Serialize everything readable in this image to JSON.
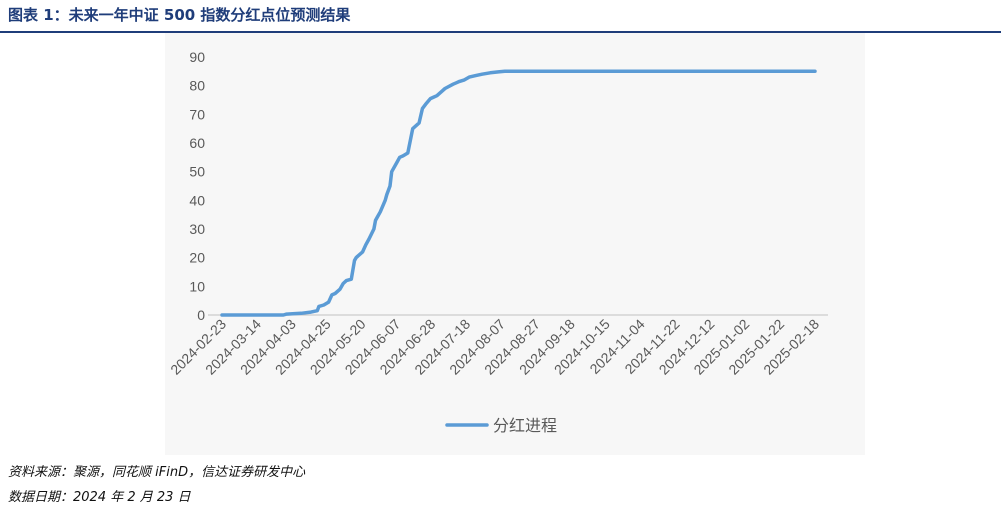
{
  "figure": {
    "title": "图表 1：未来一年中证 500 指数分红点位预测结果",
    "source": "资料来源：聚源，同花顺 iFinD，信达证券研发中心",
    "date": "数据日期：2024 年 2 月 23 日"
  },
  "colors": {
    "line": "#5b9bd5",
    "axis": "#c0c0c0",
    "text": "#595959",
    "title": "#1f3d7a"
  },
  "chart_data": {
    "type": "line",
    "title": "",
    "xlabel": "",
    "ylabel": "",
    "ylim": [
      0,
      90
    ],
    "yticks": [
      0,
      10,
      20,
      30,
      40,
      50,
      60,
      70,
      80,
      90
    ],
    "xlim": [
      "2024-02-23",
      "2025-02-24"
    ],
    "xtick_labels": [
      "2024-02-23",
      "2024-03-14",
      "2024-04-03",
      "2024-04-25",
      "2024-05-20",
      "2024-06-07",
      "2024-06-28",
      "2024-07-18",
      "2024-08-07",
      "2024-08-27",
      "2024-09-18",
      "2024-10-15",
      "2024-11-04",
      "2024-11-22",
      "2024-12-12",
      "2025-01-02",
      "2025-01-22",
      "2025-02-18"
    ],
    "grid": false,
    "legend": "bottom",
    "series": [
      {
        "name": "分红进程",
        "x": [
          "2024-02-23",
          "2024-04-01",
          "2024-04-03",
          "2024-04-08",
          "2024-04-12",
          "2024-04-15",
          "2024-04-18",
          "2024-04-22",
          "2024-04-23",
          "2024-04-26",
          "2024-04-29",
          "2024-05-01",
          "2024-05-03",
          "2024-05-06",
          "2024-05-08",
          "2024-05-10",
          "2024-05-13",
          "2024-05-15",
          "2024-05-16",
          "2024-05-17",
          "2024-05-20",
          "2024-05-22",
          "2024-05-24",
          "2024-05-27",
          "2024-05-28",
          "2024-05-29",
          "2024-05-31",
          "2024-06-03",
          "2024-06-04",
          "2024-06-06",
          "2024-06-07",
          "2024-06-10",
          "2024-06-12",
          "2024-06-14",
          "2024-06-17",
          "2024-06-20",
          "2024-06-24",
          "2024-06-26",
          "2024-06-28",
          "2024-07-01",
          "2024-07-03",
          "2024-07-05",
          "2024-07-08",
          "2024-07-10",
          "2024-07-15",
          "2024-07-17",
          "2024-07-19",
          "2024-07-22",
          "2024-07-25",
          "2024-07-29",
          "2024-08-02",
          "2024-08-07",
          "2024-08-12",
          "2024-08-16",
          "2024-08-21",
          "2024-08-27",
          "2025-02-24"
        ],
        "values": [
          0,
          0,
          0.3,
          0.5,
          0.6,
          0.8,
          1.0,
          1.5,
          3.0,
          3.5,
          4.5,
          7.0,
          7.5,
          9.0,
          11.0,
          12.0,
          12.5,
          19.0,
          20.0,
          20.5,
          22.0,
          24.5,
          26.5,
          30.0,
          33.0,
          34.0,
          36.0,
          40.0,
          42.0,
          45.0,
          50.0,
          53.0,
          55.0,
          55.5,
          56.5,
          65.0,
          67.0,
          72.0,
          73.5,
          75.5,
          76.0,
          76.5,
          78.0,
          79.0,
          80.5,
          81.0,
          81.5,
          82.0,
          83.0,
          83.5,
          84.0,
          84.5,
          84.8,
          85.0,
          85.0,
          85.0,
          85.0
        ]
      }
    ]
  }
}
